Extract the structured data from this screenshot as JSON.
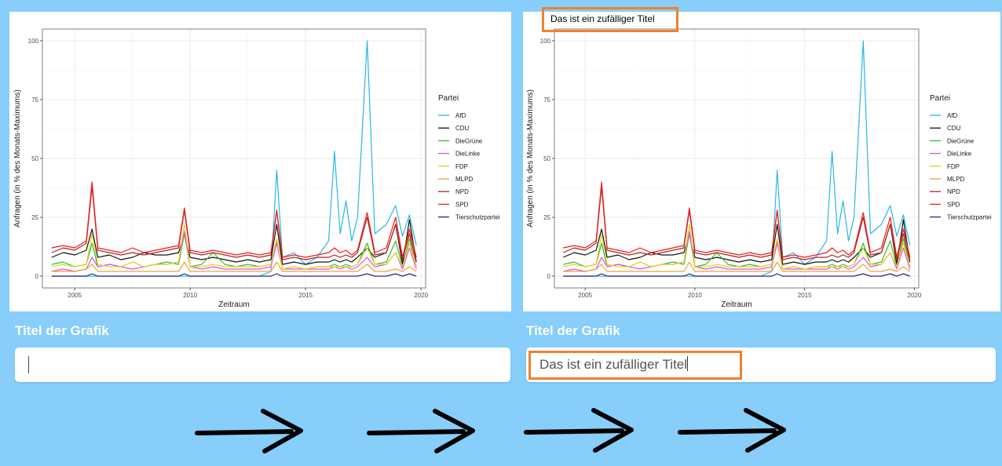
{
  "input_label": "Titel der Grafik",
  "left": {
    "title_value": ""
  },
  "right": {
    "title_value": "Das ist ein zufälliger Titel"
  },
  "colors": {
    "highlight": "#f0812d",
    "arrow": "#000000",
    "background": "#87cefa"
  },
  "icons": [
    "arrow-right-icon",
    "arrow-right-icon",
    "arrow-right-icon",
    "arrow-right-icon"
  ],
  "chart_data": [
    {
      "type": "line",
      "title": "",
      "xlabel": "Zeitraum",
      "ylabel": "Anfragen (in % des Monats-Maximums)",
      "xlim": [
        2003.6,
        2020.2
      ],
      "ylim": [
        -5,
        105
      ],
      "xticks": [
        2005,
        2010,
        2015,
        2020
      ],
      "yticks": [
        0,
        25,
        50,
        75,
        100
      ],
      "legend_title": "Partei",
      "legend_position": "right",
      "grid": true,
      "x": [
        2004.0,
        2004.5,
        2005.0,
        2005.5,
        2005.75,
        2006.0,
        2006.5,
        2007.0,
        2007.5,
        2008.0,
        2008.5,
        2009.0,
        2009.5,
        2009.75,
        2010.0,
        2010.5,
        2011.0,
        2011.5,
        2012.0,
        2012.5,
        2013.0,
        2013.5,
        2013.75,
        2014.0,
        2014.5,
        2015.0,
        2015.5,
        2016.0,
        2016.25,
        2016.5,
        2016.75,
        2017.0,
        2017.25,
        2017.67,
        2018.0,
        2018.5,
        2018.9,
        2019.2,
        2019.5,
        2019.8
      ],
      "series": [
        {
          "name": "AfD",
          "color": "#29b6e8",
          "values": [
            0,
            0,
            0,
            0,
            0,
            0,
            0,
            0,
            0,
            0,
            0,
            0,
            0,
            0,
            0,
            0,
            0,
            0,
            0,
            0,
            0,
            2,
            45,
            8,
            10,
            5,
            8,
            15,
            53,
            18,
            32,
            15,
            25,
            100,
            18,
            22,
            30,
            17,
            26,
            13
          ]
        },
        {
          "name": "CDU",
          "color": "#111111",
          "values": [
            8,
            10,
            9,
            11,
            20,
            8,
            9,
            7,
            8,
            10,
            9,
            9,
            10,
            18,
            8,
            7,
            8,
            7,
            6,
            7,
            6,
            7,
            22,
            5,
            6,
            5,
            6,
            6,
            7,
            6,
            7,
            6,
            8,
            12,
            8,
            10,
            22,
            5,
            24,
            6
          ]
        },
        {
          "name": "DieGrüne",
          "color": "#2ec02e",
          "values": [
            5,
            6,
            4,
            5,
            14,
            4,
            5,
            4,
            6,
            4,
            5,
            6,
            5,
            18,
            4,
            5,
            10,
            5,
            4,
            5,
            4,
            5,
            15,
            3,
            4,
            3,
            4,
            4,
            5,
            4,
            5,
            4,
            5,
            14,
            5,
            6,
            15,
            4,
            16,
            4
          ]
        },
        {
          "name": "DieLinke",
          "color": "#e54ce6",
          "values": [
            2,
            3,
            2,
            3,
            8,
            4,
            5,
            4,
            3,
            4,
            5,
            5,
            6,
            19,
            4,
            3,
            4,
            3,
            3,
            3,
            3,
            4,
            14,
            3,
            3,
            3,
            3,
            3,
            4,
            3,
            4,
            3,
            4,
            8,
            4,
            5,
            10,
            3,
            12,
            3
          ]
        },
        {
          "name": "FDP",
          "color": "#e8d21c",
          "values": [
            4,
            5,
            4,
            5,
            18,
            5,
            4,
            4,
            6,
            4,
            5,
            5,
            6,
            22,
            4,
            4,
            5,
            4,
            4,
            4,
            4,
            5,
            16,
            3,
            4,
            3,
            4,
            4,
            4,
            4,
            4,
            4,
            5,
            12,
            5,
            5,
            10,
            4,
            14,
            4
          ]
        },
        {
          "name": "MLPD",
          "color": "#f2a428",
          "values": [
            2,
            2,
            2,
            3,
            5,
            2,
            2,
            2,
            2,
            2,
            2,
            2,
            2,
            6,
            2,
            2,
            2,
            2,
            2,
            2,
            2,
            2,
            6,
            2,
            2,
            2,
            2,
            2,
            2,
            2,
            2,
            2,
            2,
            5,
            2,
            2,
            3,
            2,
            4,
            2
          ]
        },
        {
          "name": "NPD",
          "color": "#b22222",
          "values": [
            10,
            12,
            11,
            14,
            38,
            11,
            10,
            9,
            10,
            9,
            10,
            11,
            12,
            28,
            10,
            9,
            10,
            9,
            8,
            9,
            8,
            9,
            28,
            7,
            8,
            7,
            8,
            8,
            9,
            8,
            9,
            8,
            10,
            25,
            9,
            10,
            22,
            7,
            18,
            6
          ]
        },
        {
          "name": "SPD",
          "color": "#ee1b1b",
          "values": [
            12,
            13,
            12,
            15,
            40,
            12,
            11,
            10,
            12,
            10,
            11,
            12,
            13,
            29,
            11,
            10,
            11,
            10,
            9,
            10,
            9,
            10,
            28,
            8,
            9,
            8,
            9,
            10,
            12,
            10,
            11,
            9,
            11,
            27,
            10,
            12,
            25,
            8,
            20,
            8
          ]
        },
        {
          "name": "Tierschutzpartei",
          "color": "#22229a",
          "values": [
            0,
            0,
            0,
            0,
            1,
            0,
            0,
            0,
            0,
            0,
            0,
            0,
            0,
            1,
            0,
            0,
            0,
            0,
            0,
            0,
            0,
            0,
            1,
            0,
            0,
            0,
            0,
            0,
            0,
            0,
            0,
            0,
            0,
            1,
            0,
            0,
            1,
            0,
            1,
            0
          ]
        }
      ]
    },
    {
      "type": "line",
      "title": "Das ist ein zufälliger Titel",
      "xlabel": "Zeitraum",
      "ylabel": "Anfragen (in % des Monats-Maximums)",
      "xlim": [
        2003.6,
        2020.2
      ],
      "ylim": [
        -5,
        105
      ],
      "xticks": [
        2005,
        2010,
        2015,
        2020
      ],
      "yticks": [
        0,
        25,
        50,
        75,
        100
      ],
      "legend_title": "Partei",
      "legend_position": "right",
      "grid": true,
      "same_series_as": 0
    }
  ]
}
